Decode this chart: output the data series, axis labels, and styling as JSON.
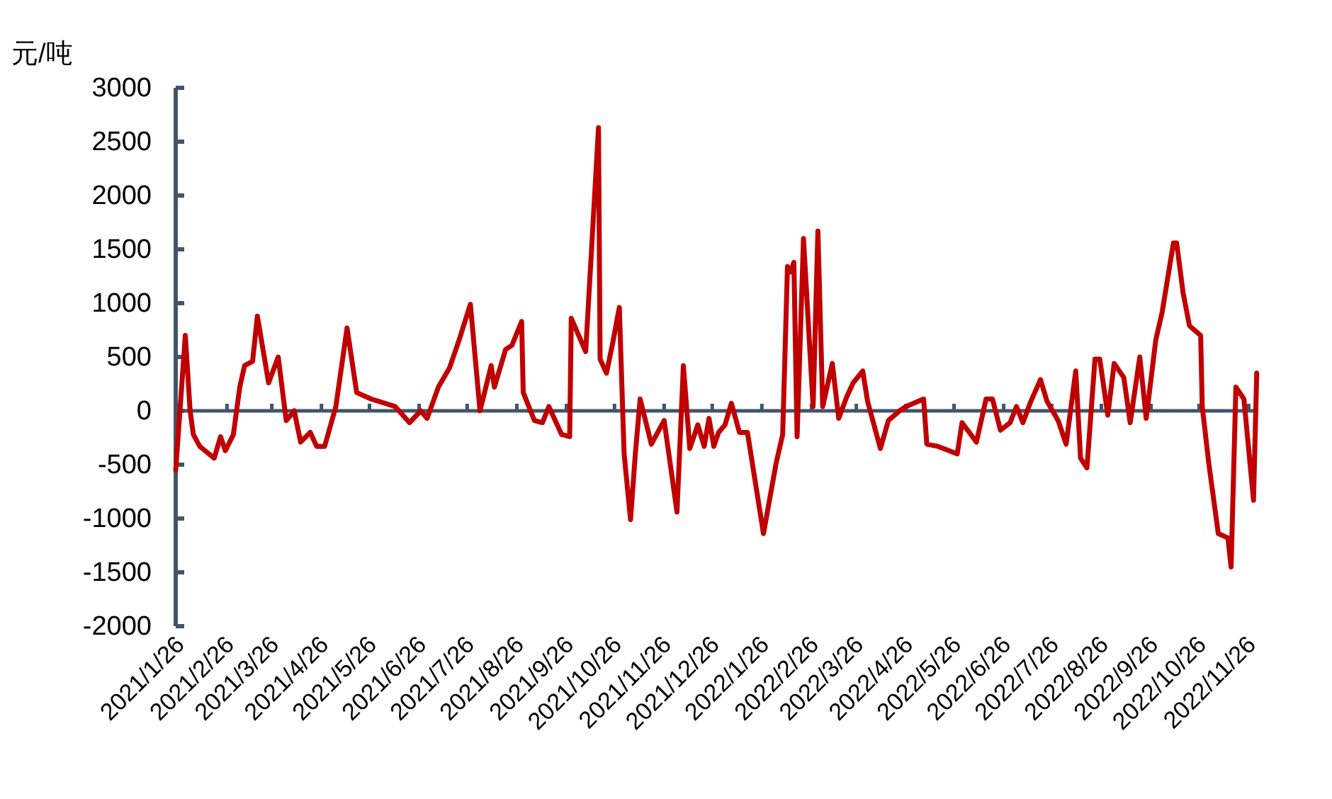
{
  "chart_data": {
    "type": "line",
    "ylabel": "元/吨",
    "marker": "none",
    "line_style": "solid",
    "ylim": [
      -2000,
      3000
    ],
    "yticks": [
      -2000,
      -1500,
      -1000,
      -500,
      0,
      500,
      1000,
      1500,
      2000,
      2500,
      3000
    ],
    "xlim": [
      "2021-01-25",
      "2022-12-02"
    ],
    "xticks": [
      {
        "value": "2021-01-26",
        "label": "2021/1/26"
      },
      {
        "value": "2021-02-26",
        "label": "2021/2/26"
      },
      {
        "value": "2021-03-26",
        "label": "2021/3/26"
      },
      {
        "value": "2021-04-26",
        "label": "2021/4/26"
      },
      {
        "value": "2021-05-26",
        "label": "2021/5/26"
      },
      {
        "value": "2021-06-26",
        "label": "2021/6/26"
      },
      {
        "value": "2021-07-26",
        "label": "2021/7/26"
      },
      {
        "value": "2021-08-26",
        "label": "2021/8/26"
      },
      {
        "value": "2021-09-26",
        "label": "2021/9/26"
      },
      {
        "value": "2021-10-26",
        "label": "2021/10/26"
      },
      {
        "value": "2021-11-26",
        "label": "2021/11/26"
      },
      {
        "value": "2021-12-26",
        "label": "2021/12/26"
      },
      {
        "value": "2022-01-26",
        "label": "2022/1/26"
      },
      {
        "value": "2022-02-26",
        "label": "2022/2/26"
      },
      {
        "value": "2022-03-26",
        "label": "2022/3/26"
      },
      {
        "value": "2022-04-26",
        "label": "2022/4/26"
      },
      {
        "value": "2022-05-26",
        "label": "2022/5/26"
      },
      {
        "value": "2022-06-26",
        "label": "2022/6/26"
      },
      {
        "value": "2022-07-26",
        "label": "2022/7/26"
      },
      {
        "value": "2022-08-26",
        "label": "2022/8/26"
      },
      {
        "value": "2022-09-26",
        "label": "2022/9/26"
      },
      {
        "value": "2022-10-26",
        "label": "2022/10/26"
      },
      {
        "value": "2022-11-26",
        "label": "2022/11/26"
      }
    ],
    "series": [
      {
        "color": "#c00000",
        "x": [
          "2021-01-25",
          "2021-01-31",
          "2021-02-03",
          "2021-02-05",
          "2021-02-09",
          "2021-02-18",
          "2021-02-22",
          "2021-02-25",
          "2021-03-02",
          "2021-03-06",
          "2021-03-09",
          "2021-03-14",
          "2021-03-17",
          "2021-03-24",
          "2021-03-30",
          "2021-04-04",
          "2021-04-09",
          "2021-04-13",
          "2021-04-19",
          "2021-04-23",
          "2021-04-28",
          "2021-05-05",
          "2021-05-12",
          "2021-05-18",
          "2021-05-27",
          "2021-06-11",
          "2021-06-20",
          "2021-06-27",
          "2021-07-01",
          "2021-07-08",
          "2021-07-15",
          "2021-07-21",
          "2021-07-28",
          "2021-08-03",
          "2021-08-10",
          "2021-08-12",
          "2021-08-19",
          "2021-08-23",
          "2021-08-29",
          "2021-08-30",
          "2021-09-06",
          "2021-09-11",
          "2021-09-15",
          "2021-09-23",
          "2021-09-28",
          "2021-09-29",
          "2021-10-08",
          "2021-10-16",
          "2021-10-17",
          "2021-10-21",
          "2021-10-25",
          "2021-10-29",
          "2021-11-01",
          "2021-11-05",
          "2021-11-08",
          "2021-11-11",
          "2021-11-18",
          "2021-11-26",
          "2021-12-04",
          "2021-12-08",
          "2021-12-12",
          "2021-12-17",
          "2021-12-21",
          "2021-12-24",
          "2021-12-27",
          "2021-12-30",
          "2022-01-03",
          "2022-01-07",
          "2022-01-12",
          "2022-01-17",
          "2022-01-27",
          "2022-02-04",
          "2022-02-08",
          "2022-02-11",
          "2022-02-13",
          "2022-02-15",
          "2022-02-17",
          "2022-02-21",
          "2022-02-27",
          "2022-03-02",
          "2022-03-05",
          "2022-03-11",
          "2022-03-15",
          "2022-03-20",
          "2022-03-24",
          "2022-03-30",
          "2022-04-02",
          "2022-04-10",
          "2022-04-15",
          "2022-04-22",
          "2022-04-26",
          "2022-05-07",
          "2022-05-09",
          "2022-05-16",
          "2022-05-28",
          "2022-05-31",
          "2022-06-09",
          "2022-06-15",
          "2022-06-19",
          "2022-06-24",
          "2022-06-30",
          "2022-07-04",
          "2022-07-08",
          "2022-07-13",
          "2022-07-19",
          "2022-07-23",
          "2022-07-30",
          "2022-08-04",
          "2022-08-10",
          "2022-08-13",
          "2022-08-17",
          "2022-08-22",
          "2022-08-25",
          "2022-08-30",
          "2022-09-03",
          "2022-09-09",
          "2022-09-13",
          "2022-09-19",
          "2022-09-23",
          "2022-09-29",
          "2022-10-03",
          "2022-10-10",
          "2022-10-12",
          "2022-10-16",
          "2022-10-20",
          "2022-10-27",
          "2022-10-28",
          "2022-11-01",
          "2022-11-07",
          "2022-11-13",
          "2022-11-15",
          "2022-11-18",
          "2022-11-23",
          "2022-11-29",
          "2022-12-01"
        ],
        "values": [
          -550,
          700,
          0,
          -220,
          -330,
          -440,
          -240,
          -370,
          -220,
          220,
          420,
          460,
          880,
          260,
          500,
          -90,
          0,
          -290,
          -200,
          -330,
          -330,
          40,
          770,
          170,
          110,
          40,
          -110,
          0,
          -70,
          220,
          400,
          660,
          990,
          0,
          420,
          220,
          570,
          610,
          830,
          170,
          -90,
          -110,
          40,
          -220,
          -240,
          860,
          550,
          2630,
          480,
          350,
          640,
          960,
          -400,
          -1010,
          -400,
          110,
          -310,
          -90,
          -940,
          420,
          -350,
          -130,
          -330,
          -70,
          -330,
          -200,
          -130,
          70,
          -200,
          -200,
          -1140,
          -480,
          -220,
          1340,
          1290,
          1380,
          -240,
          1600,
          40,
          1670,
          40,
          440,
          -70,
          130,
          260,
          370,
          90,
          -350,
          -90,
          0,
          40,
          110,
          -310,
          -330,
          -400,
          -110,
          -290,
          110,
          110,
          -180,
          -110,
          40,
          -110,
          90,
          290,
          90,
          -90,
          -310,
          370,
          -440,
          -530,
          480,
          480,
          -40,
          440,
          310,
          -110,
          500,
          -70,
          660,
          920,
          1560,
          1560,
          1100,
          790,
          700,
          40,
          -480,
          -1140,
          -1180,
          -1450,
          220,
          110,
          -830,
          350
        ]
      }
    ]
  }
}
